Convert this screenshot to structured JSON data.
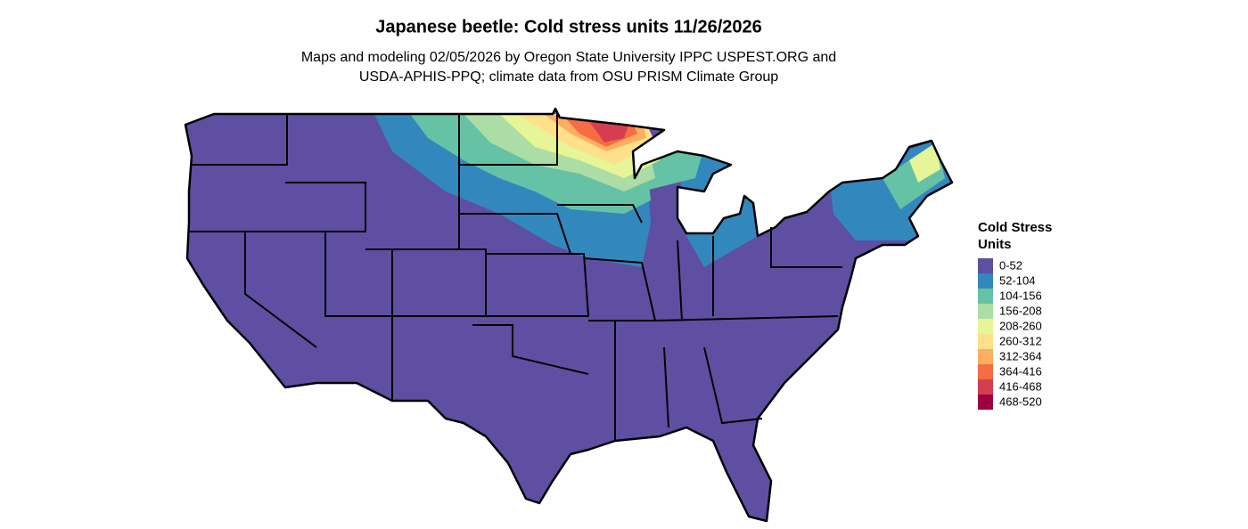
{
  "header": {
    "title": "Japanese beetle: Cold stress units 11/26/2026",
    "subtitle": [
      "Maps and modeling 02/05/2026 by Oregon State University IPPC USPEST.ORG and",
      "USDA-APHIS-PPQ; climate data from OSU PRISM Climate Group"
    ]
  },
  "legend": {
    "title": [
      "Cold Stress",
      "Units"
    ],
    "items": [
      {
        "label": "0-52",
        "color": "#5e4fa2"
      },
      {
        "label": "52-104",
        "color": "#3288bd"
      },
      {
        "label": "104-156",
        "color": "#66c2a5"
      },
      {
        "label": "156-208",
        "color": "#abdda4"
      },
      {
        "label": "208-260",
        "color": "#e6f598"
      },
      {
        "label": "260-312",
        "color": "#fee08b"
      },
      {
        "label": "312-364",
        "color": "#fdae61"
      },
      {
        "label": "364-416",
        "color": "#f46d43"
      },
      {
        "label": "416-468",
        "color": "#d53e4f"
      },
      {
        "label": "468-520",
        "color": "#9e0142"
      }
    ]
  }
}
